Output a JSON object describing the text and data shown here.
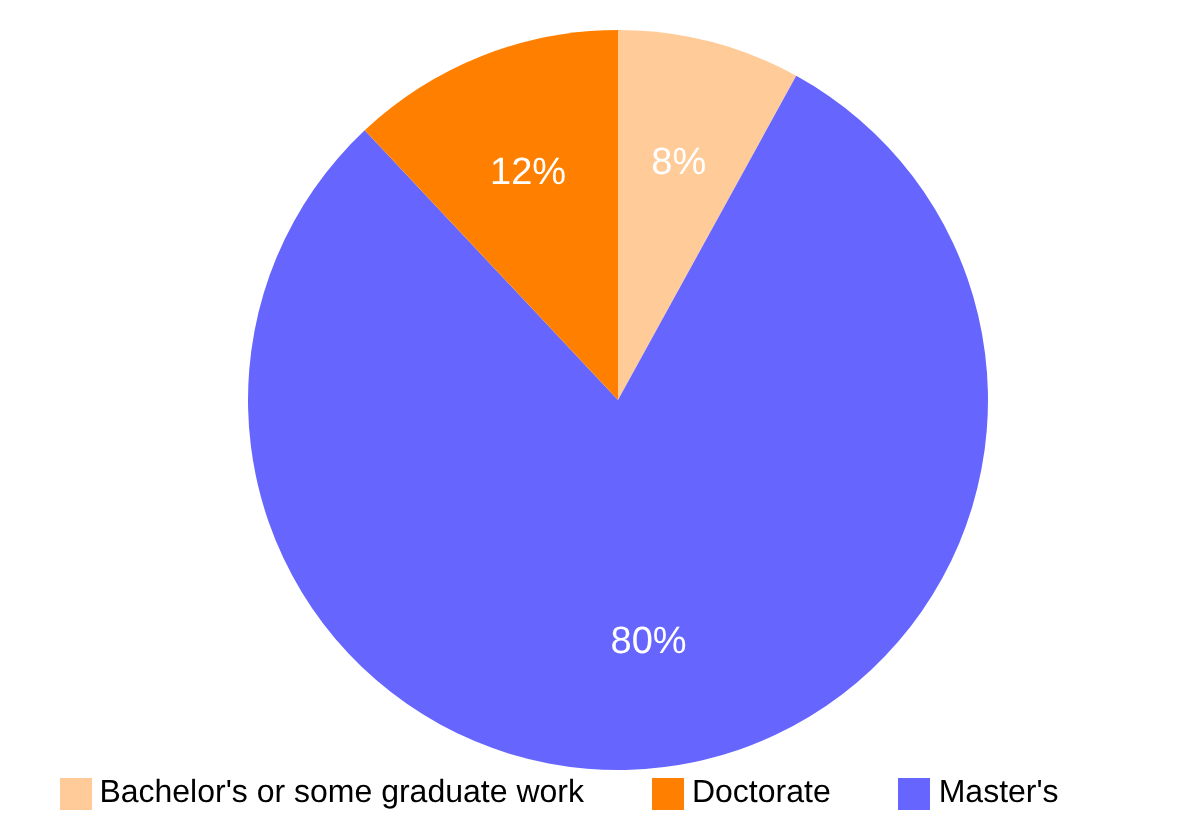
{
  "chart_data": {
    "type": "pie",
    "categories": [
      "Bachelor's or some graduate work",
      "Master's",
      "Doctorate"
    ],
    "values": [
      8,
      80,
      12
    ],
    "colors": [
      "#ffcc99",
      "#6666ff",
      "#ff8000"
    ],
    "value_labels": [
      "8%",
      "80%",
      "12%"
    ],
    "legend": "bottom"
  }
}
